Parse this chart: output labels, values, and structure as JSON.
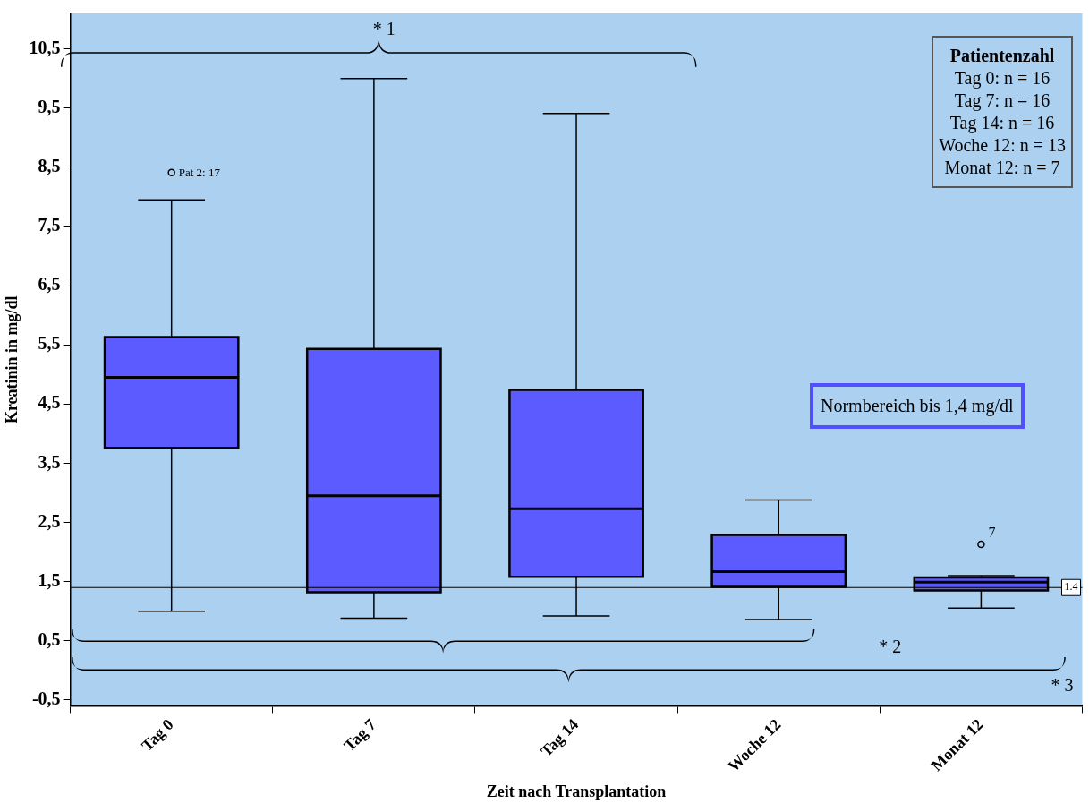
{
  "chart_data": {
    "type": "box",
    "xlabel": "Zeit nach Transplantation",
    "ylabel": "Kreatinin in mg/dl",
    "categories": [
      "Tag 0",
      "Tag 7",
      "Tag 14",
      "Woche 12",
      "Monat 12"
    ],
    "color": "#5b5bff",
    "boxes": [
      {
        "low": 1.0,
        "q1": 3.76,
        "median": 4.95,
        "q3": 5.63,
        "high": 7.95,
        "outliers": [
          8.41
        ]
      },
      {
        "low": 0.88,
        "q1": 1.32,
        "median": 2.95,
        "q3": 5.43,
        "high": 10.0
      },
      {
        "low": 0.92,
        "q1": 1.58,
        "median": 2.73,
        "q3": 4.74,
        "high": 9.41
      },
      {
        "low": 0.86,
        "q1": 1.41,
        "median": 1.67,
        "q3": 2.29,
        "high": 2.88
      },
      {
        "low": 1.05,
        "q1": 1.35,
        "median": 1.49,
        "q3": 1.57,
        "high": 1.6,
        "outliers": [
          2.13
        ]
      }
    ],
    "ylim": [
      -0.6,
      11.1
    ],
    "yticks": [
      {
        "value": -0.5,
        "label": "-0,5"
      },
      {
        "value": 0.5,
        "label": "0,5"
      },
      {
        "value": 1.5,
        "label": "1,5"
      },
      {
        "value": 2.5,
        "label": "2,5"
      },
      {
        "value": 3.5,
        "label": "3,5"
      },
      {
        "value": 4.5,
        "label": "4,5"
      },
      {
        "value": 5.5,
        "label": "5,5"
      },
      {
        "value": 6.5,
        "label": "6,5"
      },
      {
        "value": 7.5,
        "label": "7,5"
      },
      {
        "value": 8.5,
        "label": "8,5"
      },
      {
        "value": 9.5,
        "label": "9,5"
      },
      {
        "value": 10.5,
        "label": "10,5"
      }
    ],
    "ref_lines": [
      {
        "axis": "y",
        "value": 1.4,
        "label": "1.4",
        "color": "#000000"
      }
    ],
    "annotations": [
      "Pat 2: 17",
      "7",
      "* 1",
      "* 2",
      "* 3",
      "Normbereich bis 1,4 mg/dl",
      "Patientenzahl",
      "Tag 0: n = 16",
      "Tag 7: n = 16",
      "Tag 14: n = 16",
      "Woche 12: n = 13",
      "Monat 12: n = 7"
    ],
    "grid": false,
    "legend": false
  }
}
